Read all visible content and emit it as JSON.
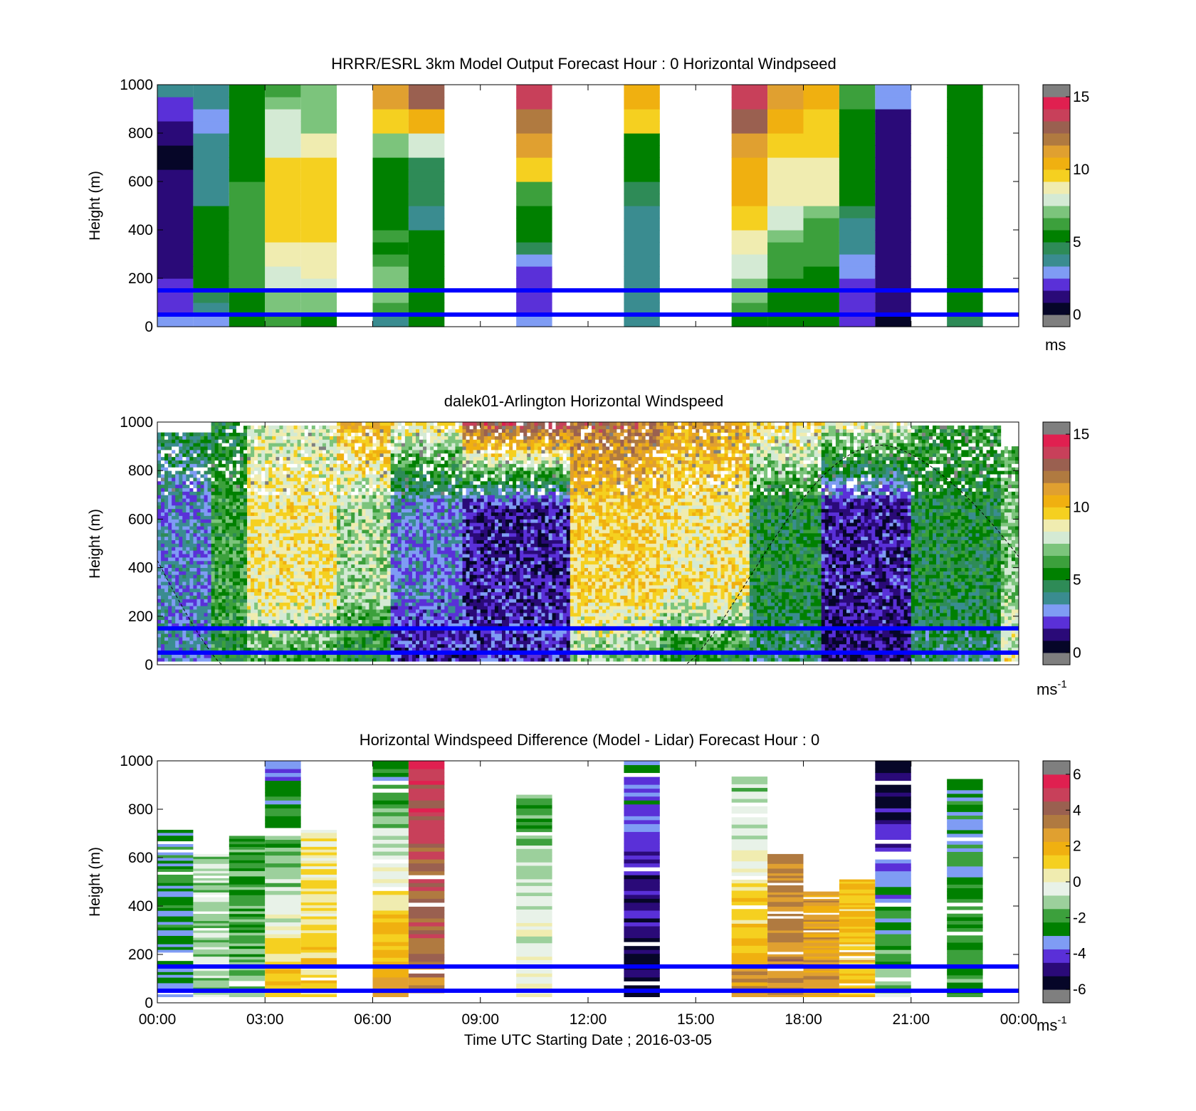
{
  "colors": {
    "speed_scale": [
      "#7f7f7f",
      "#060628",
      "#2a0a78",
      "#5a30d8",
      "#7f9cf4",
      "#3a8c90",
      "#2e8b57",
      "#008000",
      "#3ca03c",
      "#7cc47c",
      "#d4ead4",
      "#f0ecb0",
      "#f5d020",
      "#f0b010",
      "#e0a030",
      "#b07a40",
      "#9a6050",
      "#c8405a",
      "#e02050",
      "#7f7f7f"
    ],
    "diff_scale": [
      "#7f7f7f",
      "#060628",
      "#2a0a78",
      "#5a30d8",
      "#7f9cf4",
      "#008000",
      "#3ca03c",
      "#9cd09c",
      "#e8f2e8",
      "#f0ecb0",
      "#f5d020",
      "#f0b010",
      "#e0a030",
      "#b07a40",
      "#9a6050",
      "#c8405a",
      "#e02050",
      "#7f7f7f"
    ],
    "reference_lines": "#0000ff"
  },
  "panels": [
    {
      "title": "HRRR/ESRL 3km Model Output   Forecast Hour : 0 Horizontal Windpseed",
      "ylabel": "Height (m)",
      "yticks": [
        "0",
        "200",
        "400",
        "600",
        "800",
        "1000"
      ],
      "colorbar_ticks": [
        "0",
        "5",
        "10",
        "15"
      ],
      "colorbar_unit": "ms",
      "colorbar_unit_sup": ""
    },
    {
      "title": "dalek01-Arlington  Horizontal Windspeed",
      "ylabel": "Height (m)",
      "yticks": [
        "0",
        "200",
        "400",
        "600",
        "800",
        "1000"
      ],
      "colorbar_ticks": [
        "0",
        "5",
        "10",
        "15"
      ],
      "colorbar_unit": "ms",
      "colorbar_unit_sup": "-1"
    },
    {
      "title": "Horizontal Windspeed Difference (Model - Lidar) Forecast Hour : 0",
      "ylabel": "Height (m)",
      "yticks": [
        "0",
        "200",
        "400",
        "600",
        "800",
        "1000"
      ],
      "colorbar_ticks": [
        "-6",
        "-4",
        "-2",
        "0",
        "2",
        "4",
        "6"
      ],
      "colorbar_unit": "ms",
      "colorbar_unit_sup": "-1"
    }
  ],
  "xaxis": {
    "ticks": [
      "00:00",
      "03:00",
      "06:00",
      "09:00",
      "12:00",
      "15:00",
      "18:00",
      "21:00",
      "00:00"
    ],
    "label": "Time UTC  Starting Date ; 2016-03-05"
  },
  "chart_data": [
    {
      "type": "heatmap",
      "title": "HRRR/ESRL 3km Model Output   Forecast Hour : 0 Horizontal Windpseed",
      "ylabel": "Height (m)",
      "xlim_hours": [
        0,
        24
      ],
      "ylim": [
        0,
        1000
      ],
      "clim": [
        0,
        15
      ],
      "colorbar_unit": "ms",
      "reference_lines_m": [
        150,
        50
      ],
      "heights_m": [
        25,
        75,
        125,
        175,
        225,
        275,
        325,
        375,
        425,
        475,
        525,
        575,
        625,
        675,
        725,
        775,
        825,
        875,
        925,
        975
      ],
      "columns": [
        {
          "hour": 0.5,
          "speed": [
            3,
            2,
            2,
            2,
            1.5,
            1.5,
            1.5,
            1.5,
            1.5,
            1.5,
            1,
            1,
            1,
            0.5,
            0.5,
            1.5,
            1.5,
            2,
            2,
            3.5
          ]
        },
        {
          "hour": 1.5,
          "speed": [
            3,
            4,
            4.5,
            5,
            5,
            5,
            5,
            5,
            5,
            5,
            4,
            4,
            3.5,
            3.5,
            4,
            4,
            3,
            3,
            3.5,
            4
          ]
        },
        {
          "hour": 2.5,
          "speed": [
            5,
            5.5,
            5.5,
            6,
            6,
            6.5,
            6.5,
            6.5,
            6.5,
            6.5,
            6,
            6,
            5.5,
            5.5,
            5,
            5,
            5,
            5,
            5,
            5
          ]
        },
        {
          "hour": 3.5,
          "speed": [
            6,
            7,
            7,
            7.5,
            8,
            8.5,
            9,
            9.5,
            9.5,
            9.5,
            9.5,
            9.5,
            9.5,
            9.5,
            8,
            8,
            7.5,
            7.5,
            7,
            6
          ]
        },
        {
          "hour": 4.5,
          "speed": [
            5.5,
            7,
            7,
            8,
            8.5,
            9,
            9,
            9.5,
            9.5,
            9.5,
            9.5,
            9.5,
            9.5,
            9.5,
            9,
            9,
            7,
            7,
            7,
            7
          ]
        },
        {
          "hour": 6.5,
          "speed": [
            4,
            6,
            7,
            7,
            7,
            6,
            5.5,
            6,
            5.5,
            5,
            5,
            5,
            5,
            5,
            7,
            7,
            9.5,
            9.5,
            11,
            11
          ]
        },
        {
          "hour": 7.5,
          "speed": [
            5,
            5,
            5,
            5.5,
            5.5,
            5,
            5,
            5,
            3.5,
            4,
            4.5,
            4.5,
            4.5,
            4.5,
            7.5,
            7.5,
            10.5,
            10.5,
            13,
            13
          ]
        },
        {
          "hour": 10.5,
          "speed": [
            3,
            2,
            2,
            2,
            2,
            2.5,
            4.5,
            5,
            5.5,
            5.5,
            6,
            6,
            9.5,
            9.5,
            11,
            11,
            12,
            12,
            14,
            14
          ]
        },
        {
          "hour": 13.5,
          "speed": [
            3.5,
            3.5,
            3.5,
            3.5,
            3.5,
            4,
            4,
            4,
            4,
            4,
            4.5,
            4.5,
            5,
            5,
            5.5,
            5.5,
            9.5,
            9.5,
            10,
            10
          ]
        },
        {
          "hour": 16.5,
          "speed": [
            5,
            6,
            7,
            7,
            8,
            8,
            9,
            9,
            9.5,
            9.5,
            10,
            10,
            10.5,
            10.5,
            11,
            11,
            13,
            13,
            13.5,
            13.5
          ]
        },
        {
          "hour": 17.5,
          "speed": [
            5,
            5,
            5,
            5.5,
            6,
            6,
            6.5,
            7,
            7.5,
            8,
            8.5,
            8.5,
            9,
            9,
            9.5,
            9.5,
            10,
            10,
            11,
            11
          ]
        },
        {
          "hour": 18.5,
          "speed": [
            5,
            5,
            5,
            5,
            5,
            6,
            6,
            6,
            6.5,
            7,
            8.5,
            8.5,
            9,
            9,
            9.5,
            9.5,
            9.5,
            9.5,
            10,
            10
          ]
        },
        {
          "hour": 19.5,
          "speed": [
            2,
            2,
            2,
            2,
            3,
            3,
            3.5,
            3.5,
            4,
            4.5,
            5,
            5,
            5,
            5,
            5.5,
            5.5,
            5.5,
            5.5,
            6,
            6
          ]
        },
        {
          "hour": 20.5,
          "speed": [
            0.5,
            1,
            1,
            1,
            1,
            1,
            1,
            1,
            1,
            1,
            1,
            1,
            1,
            1,
            1.5,
            1.5,
            1.5,
            1.5,
            3,
            3
          ]
        },
        {
          "hour": 22.5,
          "speed": [
            4.5,
            5,
            5,
            5,
            5,
            5,
            5,
            5,
            5,
            5,
            5,
            5,
            5,
            5,
            5,
            5,
            5,
            5,
            5,
            5
          ]
        }
      ]
    },
    {
      "type": "heatmap",
      "title": "dalek01-Arlington  Horizontal Windspeed",
      "ylabel": "Height (m)",
      "xlim_hours": [
        0,
        24
      ],
      "ylim": [
        0,
        1000
      ],
      "clim": [
        0,
        15
      ],
      "colorbar_unit": "ms-1",
      "reference_lines_m": [
        150,
        50
      ],
      "time_segments": [
        {
          "start": 0.0,
          "end": 1.5,
          "low_speed": 3.5,
          "mid_speed": 3.0,
          "top_speed": 5.0,
          "data_top_m": 960
        },
        {
          "start": 1.5,
          "end": 2.5,
          "low_speed": 5.5,
          "mid_speed": 6.0,
          "top_speed": 5.0,
          "data_top_m": 1000
        },
        {
          "start": 2.5,
          "end": 5.0,
          "low_speed": 6.0,
          "mid_speed": 9.0,
          "top_speed": 8.0,
          "data_top_m": 980
        },
        {
          "start": 5.0,
          "end": 6.5,
          "low_speed": 5.0,
          "mid_speed": 7.5,
          "top_speed": 10.5,
          "data_top_m": 1000
        },
        {
          "start": 6.5,
          "end": 8.5,
          "low_speed": 1.5,
          "mid_speed": 3.0,
          "top_speed": 9.0,
          "data_top_m": 1000
        },
        {
          "start": 8.5,
          "end": 11.5,
          "low_speed": 2.0,
          "mid_speed": 1.5,
          "top_speed": 13.5,
          "data_top_m": 1000
        },
        {
          "start": 11.5,
          "end": 14.0,
          "low_speed": 7.0,
          "mid_speed": 9.5,
          "top_speed": 12.5,
          "data_top_m": 1000
        },
        {
          "start": 14.0,
          "end": 16.5,
          "low_speed": 5.0,
          "mid_speed": 9.0,
          "top_speed": 11.0,
          "data_top_m": 1000
        },
        {
          "start": 16.5,
          "end": 18.5,
          "low_speed": 4.0,
          "mid_speed": 5.0,
          "top_speed": 9.5,
          "data_top_m": 1000
        },
        {
          "start": 18.5,
          "end": 21.0,
          "low_speed": 1.0,
          "mid_speed": 1.5,
          "top_speed": 8.5,
          "data_top_m": 1000
        },
        {
          "start": 21.0,
          "end": 23.5,
          "low_speed": 4.0,
          "mid_speed": 5.0,
          "top_speed": 6.0,
          "data_top_m": 980
        },
        {
          "start": 23.5,
          "end": 24.0,
          "low_speed": 9.0,
          "mid_speed": 7.0,
          "top_speed": 6.0,
          "data_top_m": 900
        }
      ],
      "dashed_curve": {
        "description_points": [
          [
            0.0,
            430
          ],
          [
            1.8,
            0
          ],
          [
            14.7,
            0
          ],
          [
            20.2,
            905
          ],
          [
            24.0,
            445
          ]
        ]
      }
    },
    {
      "type": "heatmap",
      "title": "Horizontal Windspeed Difference (Model - Lidar) Forecast Hour : 0",
      "ylabel": "Height (m)",
      "xlim_hours": [
        0,
        24
      ],
      "ylim": [
        0,
        1000
      ],
      "clim": [
        -6,
        6
      ],
      "colorbar_unit": "ms-1",
      "reference_lines_m": [
        150,
        50
      ],
      "columns": [
        {
          "hour": 0.5,
          "bottom_m": 25,
          "top_m": 715,
          "diff_low": -3.0,
          "diff_high": -2.5
        },
        {
          "hour": 1.5,
          "bottom_m": 25,
          "top_m": 615,
          "diff_low": -1.0,
          "diff_high": -1.0
        },
        {
          "hour": 2.5,
          "bottom_m": 25,
          "top_m": 690,
          "diff_low": -1.5,
          "diff_high": -2.0
        },
        {
          "hour": 3.5,
          "bottom_m": 25,
          "top_m": 1000,
          "diff_low": 1.5,
          "diff_high": -3.5
        },
        {
          "hour": 4.5,
          "bottom_m": 25,
          "top_m": 715,
          "diff_low": 1.0,
          "diff_high": 0.5
        },
        {
          "hour": 6.5,
          "bottom_m": 25,
          "top_m": 1000,
          "diff_low": 3.0,
          "diff_high": -3.0
        },
        {
          "hour": 7.5,
          "bottom_m": 25,
          "top_m": 1000,
          "diff_low": 3.5,
          "diff_high": 5.0
        },
        {
          "hour": 10.5,
          "bottom_m": 25,
          "top_m": 860,
          "diff_low": 0.5,
          "diff_high": -2.0
        },
        {
          "hour": 13.5,
          "bottom_m": 25,
          "top_m": 1000,
          "diff_low": -6.0,
          "diff_high": -3.0
        },
        {
          "hour": 16.5,
          "bottom_m": 25,
          "top_m": 935,
          "diff_low": 3.0,
          "diff_high": -1.5
        },
        {
          "hour": 17.5,
          "bottom_m": 25,
          "top_m": 615,
          "diff_low": 3.0,
          "diff_high": 3.0
        },
        {
          "hour": 18.5,
          "bottom_m": 25,
          "top_m": 460,
          "diff_low": 2.5,
          "diff_high": 2.5
        },
        {
          "hour": 19.5,
          "bottom_m": 25,
          "top_m": 510,
          "diff_low": 1.5,
          "diff_high": 1.5
        },
        {
          "hour": 20.5,
          "bottom_m": 25,
          "top_m": 1000,
          "diff_low": -1.0,
          "diff_high": -6.0
        },
        {
          "hour": 22.5,
          "bottom_m": 25,
          "top_m": 925,
          "diff_low": -2.0,
          "diff_high": -3.0
        }
      ]
    }
  ]
}
